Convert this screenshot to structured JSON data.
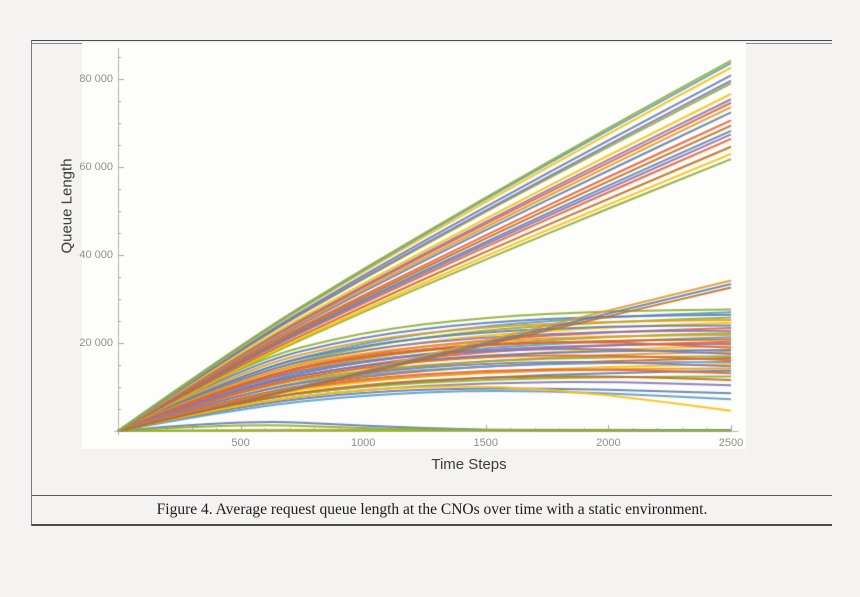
{
  "figure": {
    "caption": "Figure 4.  Average request queue length at the CNOs over time with a static environment."
  },
  "chart_data": {
    "type": "line",
    "title": "",
    "xlabel": "Time Steps",
    "ylabel": "Queue Length",
    "xlim": [
      0,
      2530
    ],
    "ylim": [
      0,
      87000
    ],
    "grid": false,
    "legend": null,
    "axis_color": "#b3b2b0",
    "tick_color": "#a6a5a3",
    "tick_label_color": "#8e8e8e",
    "x_ticks": [
      {
        "v": 500,
        "label": "500"
      },
      {
        "v": 1000,
        "label": "1000"
      },
      {
        "v": 1500,
        "label": "1500"
      },
      {
        "v": 2000,
        "label": "2000"
      },
      {
        "v": 2500,
        "label": "2500"
      }
    ],
    "x_minor_step": 100,
    "y_ticks": [
      {
        "v": 20000,
        "label": "20 000"
      },
      {
        "v": 40000,
        "label": "40 000"
      },
      {
        "v": 60000,
        "label": "60 000"
      },
      {
        "v": 80000,
        "label": "80 000"
      }
    ],
    "y_minor_step": 5000,
    "x": [
      0,
      500,
      1000,
      1500,
      2000,
      2500
    ],
    "series": [
      {
        "color": "#ffbf00",
        "values": [
          0,
          300,
          300,
          280,
          260,
          250
        ]
      },
      {
        "color": "#8fb032",
        "values": [
          0,
          160,
          160,
          150,
          150,
          150
        ]
      },
      {
        "color": "#5e81b5",
        "values": [
          0,
          2600,
          1200,
          200,
          150,
          150
        ]
      },
      {
        "color": "#8fb032",
        "values": [
          0,
          1700,
          600,
          150,
          120,
          120
        ]
      },
      {
        "color": "#8fb032",
        "values": [
          0,
          15500,
          22600,
          25900,
          27300,
          27600
        ]
      },
      {
        "color": "#5d9ec7",
        "values": [
          0,
          13200,
          20250,
          24000,
          25900,
          27000
        ]
      },
      {
        "color": "#5e81b5",
        "values": [
          0,
          14800,
          21600,
          24800,
          26100,
          26400
        ]
      },
      {
        "color": "#8fb032",
        "values": [
          0,
          12600,
          19400,
          23000,
          24800,
          25800
        ]
      },
      {
        "color": "#e19c24",
        "values": [
          0,
          14100,
          20700,
          23700,
          24900,
          25200
        ]
      },
      {
        "color": "#ffbf00",
        "values": [
          0,
          12100,
          18500,
          21900,
          23600,
          24600
        ]
      },
      {
        "color": "#5e81b5",
        "values": [
          0,
          13400,
          19700,
          22600,
          23800,
          24000
        ]
      },
      {
        "color": "#eb6235",
        "values": [
          0,
          11500,
          17600,
          20800,
          22500,
          23400
        ]
      },
      {
        "color": "#8778b3",
        "values": [
          0,
          12800,
          18700,
          21400,
          22600,
          22800
        ]
      },
      {
        "color": "#8fb032",
        "values": [
          0,
          10900,
          16700,
          19800,
          21400,
          22300
        ]
      },
      {
        "color": "#e19c24",
        "values": [
          0,
          12200,
          17900,
          20500,
          21600,
          21800
        ]
      },
      {
        "color": "#5d9ec7",
        "values": [
          0,
          10400,
          16000,
          19000,
          20400,
          21300
        ]
      },
      {
        "color": "#c56e1a",
        "values": [
          0,
          11600,
          17100,
          19600,
          20600,
          20800
        ]
      },
      {
        "color": "#eb6235",
        "values": [
          0,
          9900,
          15200,
          18100,
          19500,
          20300
        ]
      },
      {
        "color": "#8778b3",
        "values": [
          0,
          11100,
          16200,
          18600,
          19600,
          19800
        ]
      },
      {
        "color": "#ffbf00",
        "values": [
          0,
          9500,
          14500,
          17200,
          18500,
          19300
        ]
      },
      {
        "color": "#eb6235",
        "values": [
          0,
          11200,
          17300,
          19900,
          20300,
          18900
        ]
      },
      {
        "color": "#5e81b5",
        "values": [
          0,
          10300,
          15100,
          17300,
          18200,
          18400
        ]
      },
      {
        "color": "#e19c24",
        "values": [
          0,
          8800,
          13500,
          16000,
          17300,
          18000
        ]
      },
      {
        "color": "#8778b3",
        "values": [
          0,
          10300,
          16000,
          18400,
          18800,
          17500
        ]
      },
      {
        "color": "#8fb032",
        "values": [
          0,
          9500,
          13900,
          16000,
          16800,
          17000
        ]
      },
      {
        "color": "#c56e1a",
        "values": [
          0,
          8100,
          12500,
          14800,
          15900,
          16600
        ]
      },
      {
        "color": "#eb6235",
        "values": [
          0,
          9500,
          14700,
          17000,
          17300,
          16100
        ]
      },
      {
        "color": "#5d9ec7",
        "values": [
          0,
          8800,
          12900,
          14800,
          15500,
          15700
        ]
      },
      {
        "color": "#ffbf00",
        "values": [
          0,
          7400,
          11400,
          13500,
          14600,
          15200
        ]
      },
      {
        "color": "#8778b3",
        "values": [
          0,
          8700,
          13400,
          15500,
          15800,
          14700
        ]
      },
      {
        "color": "#e19c24",
        "values": [
          0,
          8000,
          11600,
          13300,
          14100,
          14200
        ]
      },
      {
        "color": "#5e81b5",
        "values": [
          0,
          6700,
          10300,
          12200,
          13200,
          13700
        ]
      },
      {
        "color": "#eb6235",
        "values": [
          0,
          7800,
          12000,
          13800,
          14100,
          13100
        ]
      },
      {
        "color": "#8fb032",
        "values": [
          0,
          6900,
          10200,
          11700,
          12300,
          12400
        ]
      },
      {
        "color": "#c56e1a",
        "values": [
          0,
          6900,
          10600,
          12300,
          12500,
          11600
        ]
      },
      {
        "color": "#8778b3",
        "values": [
          0,
          6200,
          9500,
          11000,
          11200,
          10400
        ]
      },
      {
        "color": "#5e81b5",
        "values": [
          0,
          5800,
          8900,
          9800,
          9400,
          8600
        ]
      },
      {
        "color": "#5d9ec7",
        "values": [
          0,
          5200,
          8200,
          9300,
          8600,
          7200
        ]
      },
      {
        "color": "#ffbf00",
        "values": [
          0,
          6200,
          9600,
          10400,
          8300,
          4600
        ]
      },
      {
        "color": "#e19c24",
        "values": [
          0,
          6800,
          13700,
          20500,
          27400,
          34200
        ]
      },
      {
        "color": "#5e81b5",
        "values": [
          0,
          6700,
          13400,
          20000,
          26700,
          33400
        ]
      },
      {
        "color": "#c56e1a",
        "values": [
          0,
          6500,
          13000,
          19600,
          26100,
          32600
        ]
      },
      {
        "color": "#8fb032",
        "values": [
          0,
          14500,
          27100,
          39000,
          50600,
          61800
        ]
      },
      {
        "color": "#ffbf00",
        "values": [
          0,
          14800,
          27600,
          39800,
          51500,
          63000
        ]
      },
      {
        "color": "#c56e1a",
        "values": [
          0,
          15200,
          28300,
          40800,
          52800,
          64600
        ]
      },
      {
        "color": "#eb6235",
        "values": [
          0,
          15600,
          29100,
          41900,
          54300,
          66400
        ]
      },
      {
        "color": "#8778b3",
        "values": [
          0,
          15800,
          29500,
          42500,
          55100,
          67400
        ]
      },
      {
        "color": "#5e81b5",
        "values": [
          0,
          16000,
          29900,
          43000,
          55800,
          68200
        ]
      },
      {
        "color": "#c56e1a",
        "values": [
          0,
          16300,
          30400,
          43800,
          56800,
          69400
        ]
      },
      {
        "color": "#eb6235",
        "values": [
          0,
          16600,
          30900,
          44500,
          57800,
          70600
        ]
      },
      {
        "color": "#5e81b5",
        "values": [
          0,
          17000,
          31700,
          45700,
          59200,
          72400
        ]
      },
      {
        "color": "#e19c24",
        "values": [
          0,
          17300,
          32200,
          46400,
          60200,
          73600
        ]
      },
      {
        "color": "#eb6235",
        "values": [
          0,
          17500,
          32700,
          47100,
          61000,
          74600
        ]
      },
      {
        "color": "#8778b3",
        "values": [
          0,
          17700,
          33000,
          47600,
          61700,
          75400
        ]
      },
      {
        "color": "#ffbf00",
        "values": [
          0,
          18000,
          33600,
          48300,
          62700,
          76600
        ]
      },
      {
        "color": "#8fb032",
        "values": [
          0,
          18600,
          34600,
          49900,
          64600,
          79000
        ]
      },
      {
        "color": "#8778b3",
        "values": [
          0,
          18700,
          34900,
          50200,
          65100,
          79600
        ]
      },
      {
        "color": "#5e81b5",
        "values": [
          0,
          19000,
          35400,
          51000,
          66100,
          80800
        ]
      },
      {
        "color": "#ffbf00",
        "values": [
          0,
          19400,
          36200,
          52100,
          67600,
          82600
        ]
      },
      {
        "color": "#5d9ec7",
        "values": [
          0,
          19600,
          36600,
          52800,
          68400,
          83600
        ]
      },
      {
        "color": "#8fb032",
        "values": [
          0,
          19800,
          36900,
          53100,
          68900,
          84200
        ]
      }
    ]
  }
}
